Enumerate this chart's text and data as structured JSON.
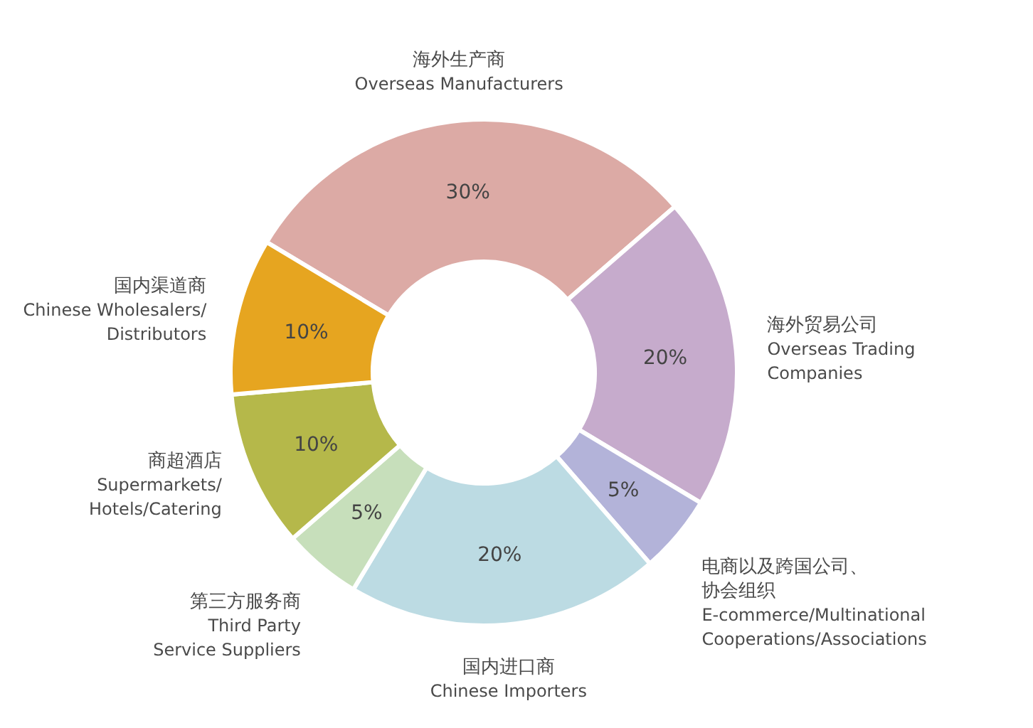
{
  "chart_data": {
    "type": "donut",
    "categories": [
      "海外生产商\nOverseas Manufacturers",
      "海外贸易公司\nOverseas Trading\nCompanies",
      "电商以及跨国公司、协会组织\nE-commerce/Multinational\nCooperations/Associations",
      "国内进口商\nChinese Importers",
      "第三方服务商\nThird Party\nService Suppliers",
      "商超酒店\nSupermarkets/\nHotels/Catering",
      "国内渠道商\nChinese Wholesalers/\nDistributors"
    ],
    "values": [
      30,
      20,
      5,
      20,
      5,
      10,
      10
    ],
    "value_labels": [
      "30%",
      "20%",
      "5%",
      "20%",
      "5%",
      "10%",
      "10%"
    ],
    "colors": [
      "#dcaaa5",
      "#c6abcc",
      "#b3b3d9",
      "#bcdbe3",
      "#c7dfbb",
      "#b5b84a",
      "#e6a520"
    ]
  }
}
